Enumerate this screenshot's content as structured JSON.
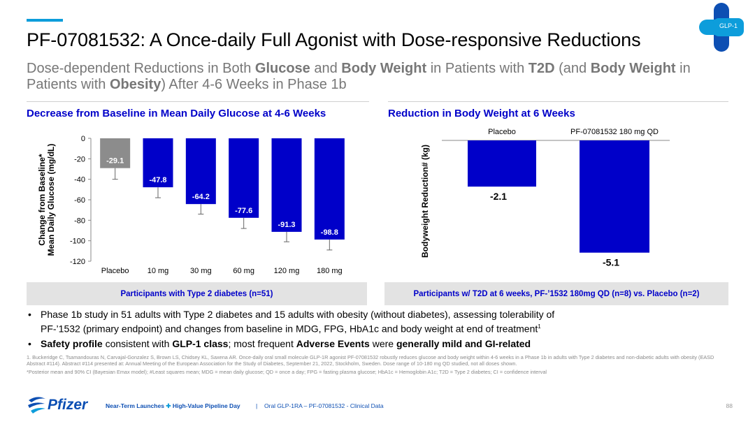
{
  "slide": {
    "title": "PF-07081532: A Once-daily Full Agonist with Dose-responsive Reductions",
    "subtitle_parts": [
      {
        "text": "Dose-dependent Reductions in Both ",
        "bold": false
      },
      {
        "text": "Glucose",
        "bold": true
      },
      {
        "text": " and ",
        "bold": false
      },
      {
        "text": "Body Weight",
        "bold": true
      },
      {
        "text": " in Patients with ",
        "bold": false
      },
      {
        "text": "T2D",
        "bold": true
      },
      {
        "text": " (and ",
        "bold": false
      },
      {
        "text": "Body Weight",
        "bold": true
      },
      {
        "text": " in Patients with ",
        "bold": false
      },
      {
        "text": "Obesity",
        "bold": true
      },
      {
        "text": ") After 4-6 Weeks in Phase 1b",
        "bold": false
      }
    ],
    "badge": "GLP-1",
    "colors": {
      "accent": "#0d9ddb",
      "bar_blue": "#0000c9",
      "placebo_gray": "#8c8c8c",
      "panel_title": "#0000c9"
    }
  },
  "chart_data": [
    {
      "type": "bar",
      "title": "Decrease from Baseline in Mean Daily Glucose at 4-6 Weeks",
      "ylabel_lines": [
        "Change from Baseline*",
        "Mean Daily Glucose (mg/dL)"
      ],
      "categories": [
        "Placebo",
        "10 mg",
        "30 mg",
        "60 mg",
        "120 mg",
        "180 mg"
      ],
      "values": [
        -29.1,
        -47.8,
        -64.2,
        -77.6,
        -91.3,
        -98.8
      ],
      "labels": [
        "-29.1",
        "-47.8",
        "-64.2",
        "-77.6",
        "-91.3",
        "-98.8"
      ],
      "error_low": [
        -40,
        -58,
        -74,
        -88,
        -101,
        -109
      ],
      "ylim": [
        -120,
        0
      ],
      "yticks": [
        0,
        -20,
        -40,
        -60,
        -80,
        -100,
        -120
      ],
      "ytick_labels": [
        "0",
        "-20",
        "-40",
        "-60",
        "-80",
        "-100",
        "-120"
      ],
      "footnote": "Participants with Type 2 diabetes (n=51)"
    },
    {
      "type": "bar",
      "title": "Reduction in Body Weight at 6 Weeks",
      "ylabel": "Bodyweight Reduction# (kg)",
      "categories": [
        "Placebo",
        "PF-07081532 180 mg QD"
      ],
      "values": [
        -2.1,
        -5.1
      ],
      "labels": [
        "-2.1",
        "-5.1"
      ],
      "ylim": [
        -5.3,
        0
      ],
      "footnote": "Participants w/ T2D at 6 weeks, PF-’1532 180mg QD (n=8) vs. Placebo (n=2)"
    }
  ],
  "bullets": {
    "b1_line1": "Phase 1b study in 51 adults with Type 2 diabetes and 15 adults with obesity (without diabetes), assessing tolerability of",
    "b1_line2": "PF-’1532 (primary endpoint) and changes from baseline in MDG, FPG, HbA1c and body weight at end of treatment",
    "b1_sup": "1",
    "b2_parts": [
      {
        "text": "Safety profile",
        "bold": true
      },
      {
        "text": " consistent with ",
        "bold": false
      },
      {
        "text": "GLP-1 class",
        "bold": true
      },
      {
        "text": "; most frequent ",
        "bold": false
      },
      {
        "text": "Adverse Events",
        "bold": true
      },
      {
        "text": " were ",
        "bold": false
      },
      {
        "text": "generally mild and GI-related",
        "bold": true
      }
    ]
  },
  "refs": {
    "ref1": "1. Buckeridge C, Tsamandouras N, Carvajal-Gonzalez S, Brown LS, Chidsey KL, Saxena AR. Once-daily oral small molecule GLP-1R agonist PF-07081532 robustly reduces glucose and body weight within 4-6 weeks in a Phase 1b in adults with Type 2 diabetes and non-diabetic adults with obesity (EASD Abstract #114). Abstract #114 presented at: Annual Meeting of the European Association for the Study of Diabetes, September 21, 2022, Stockholm, Sweden. Dose range of 10-180 mg QD studied, not all doses shown.",
    "ref2": "*Posterior mean and 90% CI (Bayesian Emax model); #Least squares mean; MDG = mean daily glucose; QD = once a day; FPG = fasting plasma glucose; HbA1c = Hemoglobin A1c; T2D = Type 2 diabetes; CI = confidence interval"
  },
  "footer": {
    "logo": "Pfizer",
    "left_a": "Near-Term Launches",
    "left_b": "High-Value Pipeline Day",
    "sep": "|",
    "right": "Oral GLP-1RA – PF-07081532 - Clinical Data",
    "page": "88"
  }
}
